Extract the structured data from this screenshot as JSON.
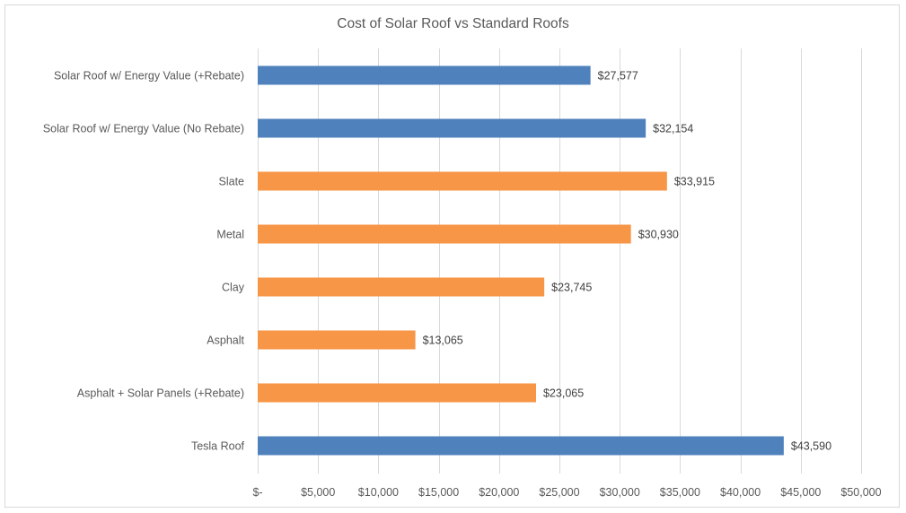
{
  "chart_data": {
    "type": "bar",
    "orientation": "horizontal",
    "title": "Cost of Solar Roof vs Standard Roofs",
    "xlabel": "",
    "ylabel": "",
    "xlim": [
      0,
      50000
    ],
    "grid": true,
    "legend": "none",
    "categories": [
      "Solar Roof w/ Energy Value (+Rebate)",
      "Solar Roof w/ Energy Value (No Rebate)",
      "Slate",
      "Metal",
      "Clay",
      "Asphalt",
      "Asphalt + Solar Panels (+Rebate)",
      "Tesla Roof"
    ],
    "values": [
      27577,
      32154,
      33915,
      30930,
      23745,
      13065,
      23065,
      43590
    ],
    "data_labels": [
      "$27,577",
      "$32,154",
      "$33,915",
      "$30,930",
      "$23,745",
      "$13,065",
      "$23,065",
      "$43,590"
    ],
    "bar_colors": [
      "#4f81bd",
      "#4f81bd",
      "#f79646",
      "#f79646",
      "#f79646",
      "#f79646",
      "#f79646",
      "#4f81bd"
    ],
    "x_ticks": [
      0,
      5000,
      10000,
      15000,
      20000,
      25000,
      30000,
      35000,
      40000,
      45000,
      50000
    ],
    "x_tick_labels": [
      "$-",
      "$5,000",
      "$10,000",
      "$15,000",
      "$20,000",
      "$25,000",
      "$30,000",
      "$35,000",
      "$40,000",
      "$45,000",
      "$50,000"
    ],
    "gridline_color": "#d9d9d9"
  }
}
